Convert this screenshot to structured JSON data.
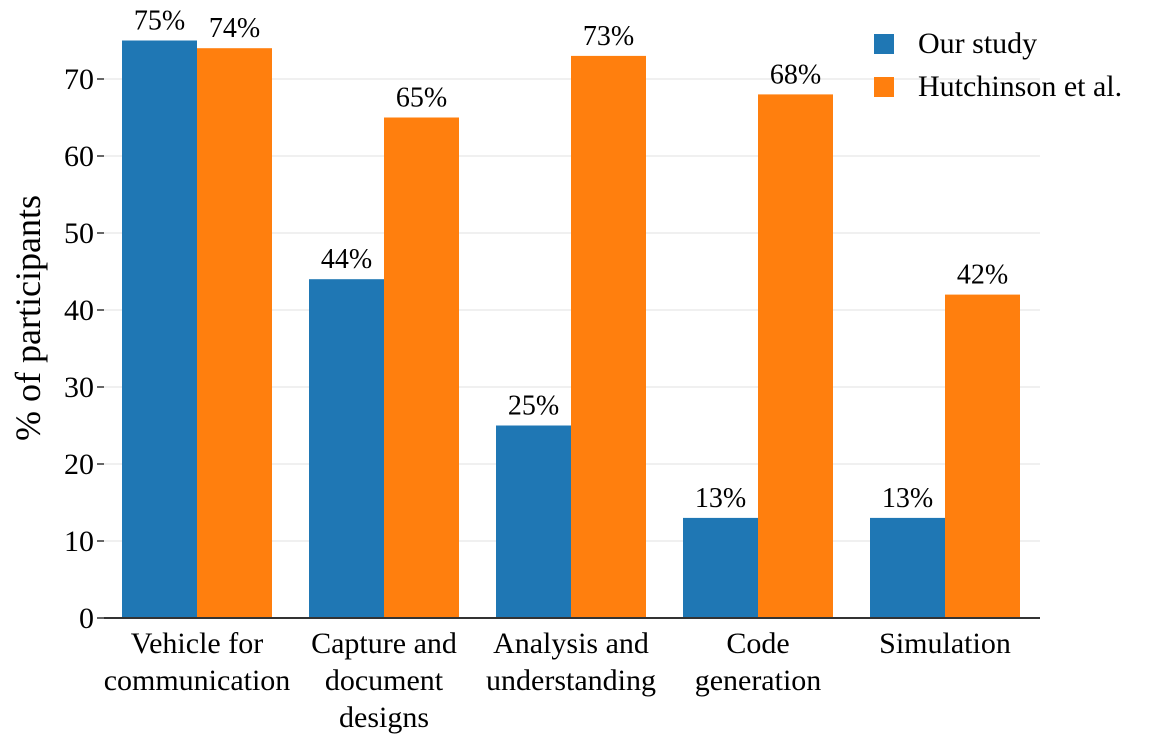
{
  "chart_data": {
    "type": "bar",
    "ylabel": "% of participants",
    "ylim": [
      0,
      75
    ],
    "yticks": [
      0,
      10,
      20,
      30,
      40,
      50,
      60,
      70
    ],
    "grid": "horizontal",
    "legend_position": "top-right",
    "categories": [
      [
        "Vehicle for",
        "communication"
      ],
      [
        "Capture and",
        "document",
        "designs"
      ],
      [
        "Analysis and",
        "understanding"
      ],
      [
        "Code",
        "generation"
      ],
      [
        "Simulation"
      ]
    ],
    "series": [
      {
        "name": "Our study",
        "color": "#1f77b4",
        "values": [
          75,
          44,
          25,
          13,
          13
        ],
        "labels": [
          "75%",
          "44%",
          "25%",
          "13%",
          "13%"
        ]
      },
      {
        "name": "Hutchinson et al.",
        "color": "#ff7f0e",
        "values": [
          74,
          65,
          73,
          68,
          42
        ],
        "labels": [
          "74%",
          "65%",
          "73%",
          "68%",
          "42%"
        ]
      }
    ]
  }
}
